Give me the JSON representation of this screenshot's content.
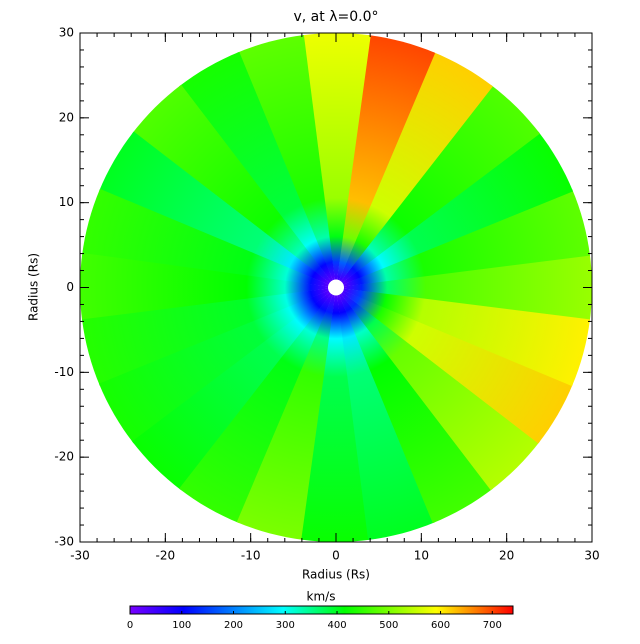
{
  "chart_data": {
    "type": "polar-heatmap",
    "title": "v, at λ=0.0°",
    "xlabel": "Radius (Rs)",
    "ylabel": "Radius (Rs)",
    "xlim": [
      -30,
      30
    ],
    "ylim": [
      -30,
      30
    ],
    "xticks": [
      -30,
      -20,
      -10,
      0,
      10,
      20,
      30
    ],
    "yticks": [
      -30,
      -20,
      -10,
      0,
      10,
      20,
      30
    ],
    "angles": [
      0,
      15,
      30,
      45,
      60,
      75,
      90,
      105,
      120,
      135,
      150,
      165,
      180,
      195,
      210,
      225,
      240,
      255,
      270,
      285,
      300,
      315,
      330,
      345
    ],
    "values": [
      520,
      480,
      420,
      470,
      620,
      700,
      580,
      480,
      430,
      470,
      400,
      450,
      460,
      440,
      430,
      420,
      450,
      500,
      420,
      400,
      460,
      540,
      620,
      600
    ],
    "colorbar_label": "km/s",
    "clim": [
      0,
      740
    ],
    "cticks": [
      0,
      100,
      200,
      300,
      400,
      500,
      600,
      700
    ]
  }
}
